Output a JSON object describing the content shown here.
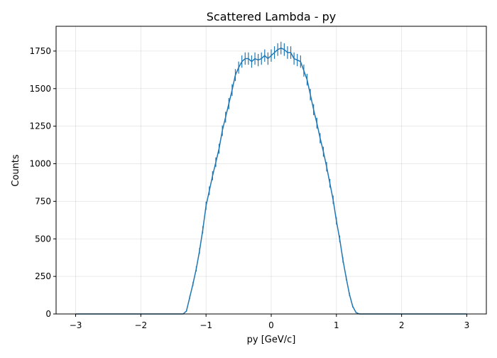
{
  "chart_data": {
    "type": "histogram",
    "title": "Scattered Lambda - py",
    "xlabel": "py [GeV/c]",
    "ylabel": "Counts",
    "xlim": [
      -3.3,
      3.3
    ],
    "ylim": [
      0,
      1915
    ],
    "xticks": [
      -3,
      -2,
      -1,
      0,
      1,
      2,
      3
    ],
    "xtick_labels": [
      "−3",
      "−2",
      "−1",
      "0",
      "1",
      "2",
      "3"
    ],
    "yticks": [
      0,
      250,
      500,
      750,
      1000,
      1250,
      1500,
      1750
    ],
    "ytick_labels": [
      "0",
      "250",
      "500",
      "750",
      "1000",
      "1250",
      "1500",
      "1750"
    ],
    "grid": true,
    "color": "#1f77b4",
    "series": [
      {
        "x": [
          -3.0,
          -2.5,
          -2.0,
          -1.5,
          -1.35,
          -1.3,
          -1.25,
          -1.2,
          -1.15,
          -1.1,
          -1.05,
          -1.0,
          -0.95,
          -0.9,
          -0.85,
          -0.8,
          -0.75,
          -0.7,
          -0.65,
          -0.6,
          -0.55,
          -0.5,
          -0.45,
          -0.4,
          -0.35,
          -0.3,
          -0.25,
          -0.2,
          -0.15,
          -0.1,
          -0.05,
          0.0,
          0.05,
          0.1,
          0.15,
          0.2,
          0.25,
          0.3,
          0.35,
          0.4,
          0.45,
          0.5,
          0.55,
          0.6,
          0.65,
          0.7,
          0.75,
          0.8,
          0.85,
          0.9,
          0.95,
          1.0,
          1.05,
          1.1,
          1.15,
          1.2,
          1.25,
          1.3,
          1.35,
          1.5,
          2.0,
          2.5,
          3.0
        ],
        "y": [
          0,
          0,
          0,
          0,
          0,
          20,
          110,
          200,
          300,
          420,
          560,
          720,
          820,
          920,
          1010,
          1100,
          1220,
          1310,
          1400,
          1490,
          1590,
          1640,
          1680,
          1700,
          1700,
          1680,
          1700,
          1690,
          1700,
          1720,
          1700,
          1720,
          1740,
          1760,
          1770,
          1760,
          1740,
          1740,
          1700,
          1690,
          1680,
          1620,
          1560,
          1460,
          1360,
          1270,
          1170,
          1080,
          980,
          870,
          760,
          620,
          500,
          360,
          240,
          130,
          50,
          10,
          0,
          0,
          0,
          0,
          0
        ],
        "errors": [
          0,
          0,
          0,
          0,
          0,
          5,
          11,
          14,
          17,
          20,
          24,
          27,
          29,
          30,
          32,
          33,
          35,
          36,
          37,
          39,
          40,
          40,
          41,
          41,
          41,
          41,
          41,
          41,
          41,
          41,
          41,
          41,
          42,
          42,
          42,
          42,
          42,
          42,
          41,
          41,
          41,
          40,
          39,
          38,
          37,
          36,
          34,
          33,
          31,
          29,
          28,
          25,
          22,
          19,
          15,
          11,
          7,
          3,
          0,
          0,
          0,
          0,
          0
        ]
      }
    ]
  }
}
